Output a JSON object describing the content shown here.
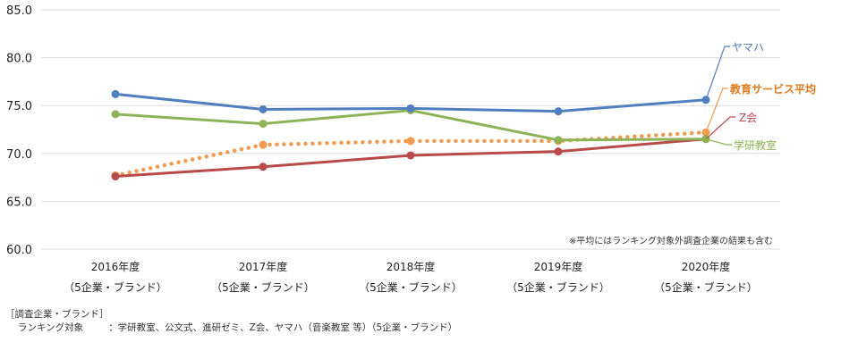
{
  "chart_data": {
    "type": "line",
    "title": "",
    "xlabel": "",
    "ylabel": "",
    "ylim": [
      60.0,
      85.0
    ],
    "yticks": [
      "60.0",
      "65.0",
      "70.0",
      "75.0",
      "80.0",
      "85.0"
    ],
    "grid": true,
    "categories": [
      "2016年度",
      "2017年度",
      "2018年度",
      "2019年度",
      "2020年度"
    ],
    "category_sublabels": [
      "（5企業・ブランド）",
      "（5企業・ブランド）",
      "（5企業・ブランド）",
      "（5企業・ブランド）",
      "（5企業・ブランド）"
    ],
    "legend_position": "right (end-of-line labels)",
    "series": [
      {
        "name": "ヤマハ",
        "color": "#4f7fbf",
        "style": "solid",
        "values": [
          76.2,
          74.6,
          74.7,
          74.4,
          75.6
        ]
      },
      {
        "name": "教育サービス平均",
        "color": "#f29a4f",
        "style": "dotted",
        "bold_label": true,
        "label_color": "#e07a1f",
        "values": [
          67.7,
          70.9,
          71.3,
          71.3,
          72.2
        ]
      },
      {
        "name": "Z会",
        "color": "#b84a4a",
        "style": "solid",
        "values": [
          67.6,
          68.6,
          69.8,
          70.2,
          71.5
        ]
      },
      {
        "name": "学研教室",
        "color": "#8db356",
        "style": "solid",
        "values": [
          74.1,
          73.1,
          74.5,
          71.4,
          71.5
        ]
      }
    ],
    "annotation": "※平均にはランキング対象外調査企業の結果も含む"
  },
  "footer": {
    "heading": "［調査企業・ブランド］",
    "label": "ランキング対象",
    "text": "：学研教室、公文式、進研ゼミ、Z会、ヤマハ（音楽教室 等）（5企業・ブランド）"
  }
}
